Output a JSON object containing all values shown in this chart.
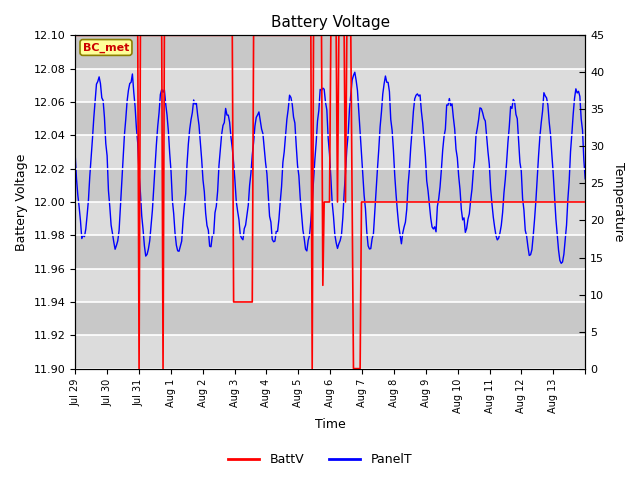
{
  "title": "Battery Voltage",
  "xlabel": "Time",
  "ylabel_left": "Battery Voltage",
  "ylabel_right": "Temperature",
  "ylim_left": [
    11.9,
    12.1
  ],
  "ylim_right": [
    0,
    45
  ],
  "yticks_left": [
    11.9,
    11.92,
    11.94,
    11.96,
    11.98,
    12.0,
    12.02,
    12.04,
    12.06,
    12.08,
    12.1
  ],
  "yticks_right": [
    0,
    5,
    10,
    15,
    20,
    25,
    30,
    35,
    40,
    45
  ],
  "xtick_labels": [
    "Jul 29",
    "Jul 30",
    "Jul 31",
    "Aug 1",
    "Aug 2",
    "Aug 3",
    "Aug 4",
    "Aug 5",
    "Aug 6",
    "Aug 7",
    "Aug 8",
    "Aug 9",
    "Aug 10",
    "Aug 11",
    "Aug 12",
    "Aug 13"
  ],
  "bg_color": "#dcdcdc",
  "batt_color": "#ff0000",
  "panel_color": "#0000ff",
  "legend_labels": [
    "BattV",
    "PanelT"
  ],
  "annotation_text": "BC_met",
  "annotation_bg": "#ffff99",
  "annotation_border": "#8b8000",
  "n_days": 16
}
